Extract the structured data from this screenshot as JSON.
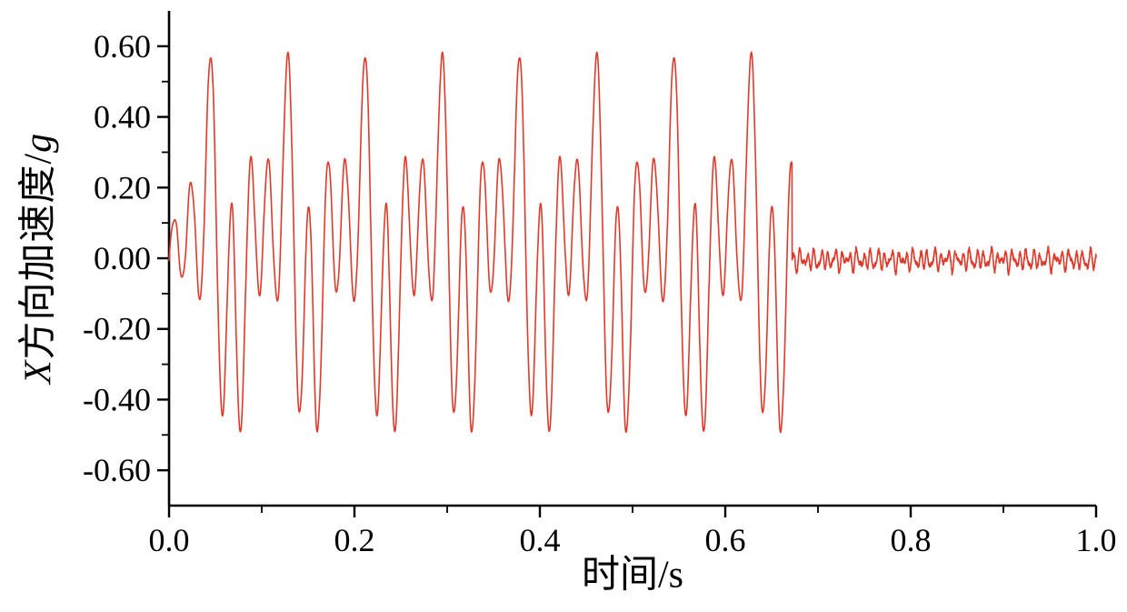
{
  "figure": {
    "background": "#ffffff",
    "ylabel_parts": {
      "prefix": "X",
      "main": "方向加速度/",
      "suffix": "g"
    },
    "xlabel_parts": {
      "main": "时间/",
      "suffix": "s"
    }
  },
  "chart_data": {
    "type": "line",
    "title": "",
    "xlabel": "时间/s",
    "ylabel": "X方向加速度/g",
    "xlim": [
      0.0,
      1.0
    ],
    "ylim": [
      -0.7,
      0.7
    ],
    "grid": false,
    "legend": null,
    "line_color": "#df3a2b",
    "line_width": 1.6,
    "x_ticks": {
      "values": [
        0.0,
        0.2,
        0.4,
        0.6,
        0.8,
        1.0
      ],
      "labels": [
        "0.0",
        "0.2",
        "0.4",
        "0.6",
        "0.8",
        "1.0"
      ],
      "minor": [
        0.1,
        0.3,
        0.5,
        0.7,
        0.9
      ]
    },
    "y_ticks": {
      "values": [
        0.6,
        0.4,
        0.2,
        0.0,
        -0.2,
        -0.4,
        -0.6
      ],
      "labels": [
        "0.60",
        "0.40",
        "0.20",
        "0.00",
        "-0.20",
        "-0.40",
        "-0.60"
      ],
      "minor": [
        0.5,
        0.3,
        0.1,
        -0.1,
        -0.3,
        -0.5
      ]
    },
    "signal": {
      "sample_step_s": 0.0002,
      "strong_phase": {
        "t_start_s": 0.0,
        "t_end_s": 0.672,
        "period_s": 0.0833,
        "first_peak_time_s": 0.045,
        "major_peak_times_s": [
          0.045,
          0.128,
          0.212,
          0.295,
          0.378,
          0.462,
          0.545,
          0.628
        ],
        "peak_value_g": 0.575,
        "deepest_trough_g": -0.49,
        "start_ramp_s": 0.035,
        "cycle_shape_phase_value": [
          [
            0.0,
            0.575
          ],
          [
            0.15,
            -0.44
          ],
          [
            0.27,
            0.15
          ],
          [
            0.38,
            -0.49
          ],
          [
            0.52,
            0.28
          ],
          [
            0.63,
            -0.1
          ],
          [
            0.74,
            0.28
          ],
          [
            0.86,
            -0.12
          ],
          [
            1.0,
            0.575
          ]
        ],
        "ripple": {
          "freq_hz": 150,
          "amp_g": 0.008
        }
      },
      "quiet_phase": {
        "t_start_s": 0.672,
        "t_end_s": 1.0,
        "band_amplitude_g": 0.04,
        "bias_g": -0.005,
        "jitter_amp_g": 0.012,
        "components": [
          {
            "freq_hz": 131,
            "amp_g": 0.018,
            "phase_rad": 0.5
          },
          {
            "freq_hz": 197,
            "amp_g": 0.012,
            "phase_rad": 2.1
          },
          {
            "freq_hz": 83,
            "amp_g": 0.008,
            "phase_rad": 4.0
          }
        ]
      }
    }
  }
}
